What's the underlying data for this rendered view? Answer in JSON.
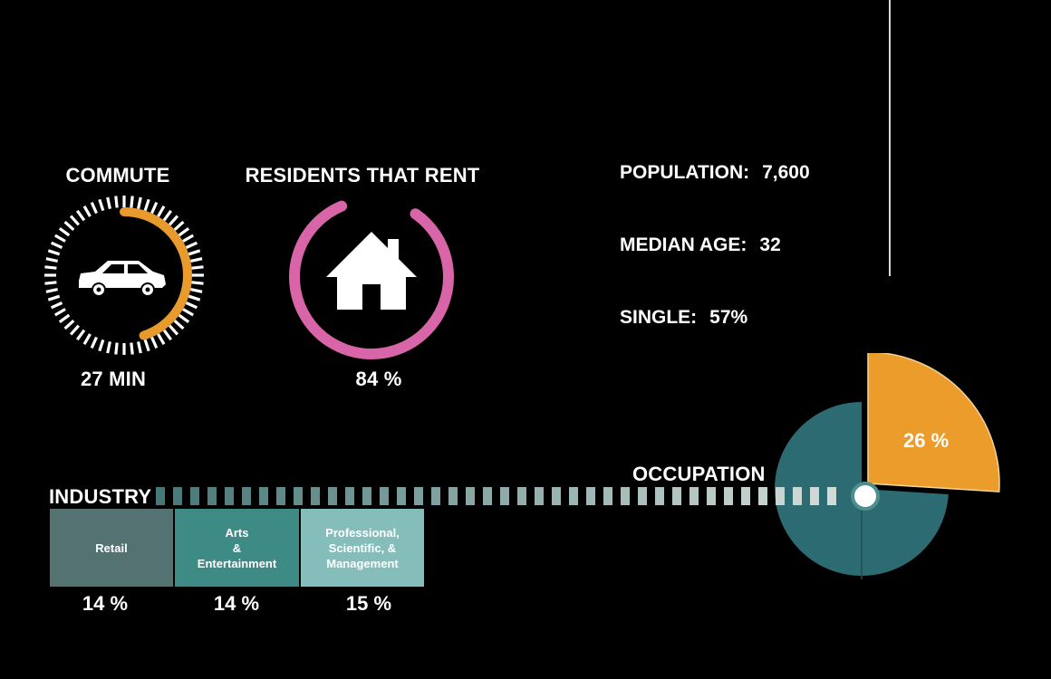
{
  "colors": {
    "background": "#000000",
    "commute_accent": "#E89A2C",
    "rent_accent": "#D865A8",
    "teal_dark": "#2B6B71",
    "orange_slice": "#EC9C2A",
    "retail": "#557272",
    "arts": "#3E8A84",
    "professional": "#84BDBA"
  },
  "icons": {
    "commute": "car-icon",
    "rent": "house-icon"
  },
  "commute": {
    "title": "COMMUTE",
    "value_label": "27 MIN",
    "minutes": 27
  },
  "rent": {
    "title": "RESIDENTS THAT RENT",
    "value_label": "84 %",
    "percent": 84
  },
  "stats": {
    "population_label": "POPULATION:",
    "population_value": "7,600",
    "median_age_label": "MEDIAN AGE:",
    "median_age_value": "32",
    "single_label": "SINGLE:",
    "single_value": "57%"
  },
  "occupation": {
    "title": "OCCUPATION",
    "slice_label": "26 %"
  },
  "industry": {
    "title": "INDUSTRY",
    "bars": [
      {
        "label": "Retail",
        "percent_label": "14 %"
      },
      {
        "label": "Arts\n&\nEntertainment",
        "percent_label": "14 %"
      },
      {
        "label": "Professional,\nScientific, &\nManagement",
        "percent_label": "15 %"
      }
    ]
  },
  "chart_data": [
    {
      "type": "pie",
      "title": "OCCUPATION",
      "slices": [
        {
          "label": "26 %",
          "value": 26,
          "color": "#EC9C2A"
        },
        {
          "label": "",
          "value": 74,
          "color": "#2B6B71"
        }
      ]
    },
    {
      "type": "bar",
      "title": "INDUSTRY",
      "categories": [
        "Retail",
        "Arts & Entertainment",
        "Professional, Scientific, & Management"
      ],
      "values": [
        14,
        14,
        15
      ]
    },
    {
      "type": "pie",
      "title": "RESIDENTS THAT RENT",
      "slices": [
        {
          "label": "84 %",
          "value": 84
        }
      ]
    },
    {
      "type": "pie",
      "title": "COMMUTE",
      "slices": [
        {
          "label": "27 MIN",
          "value": 27
        }
      ]
    }
  ]
}
